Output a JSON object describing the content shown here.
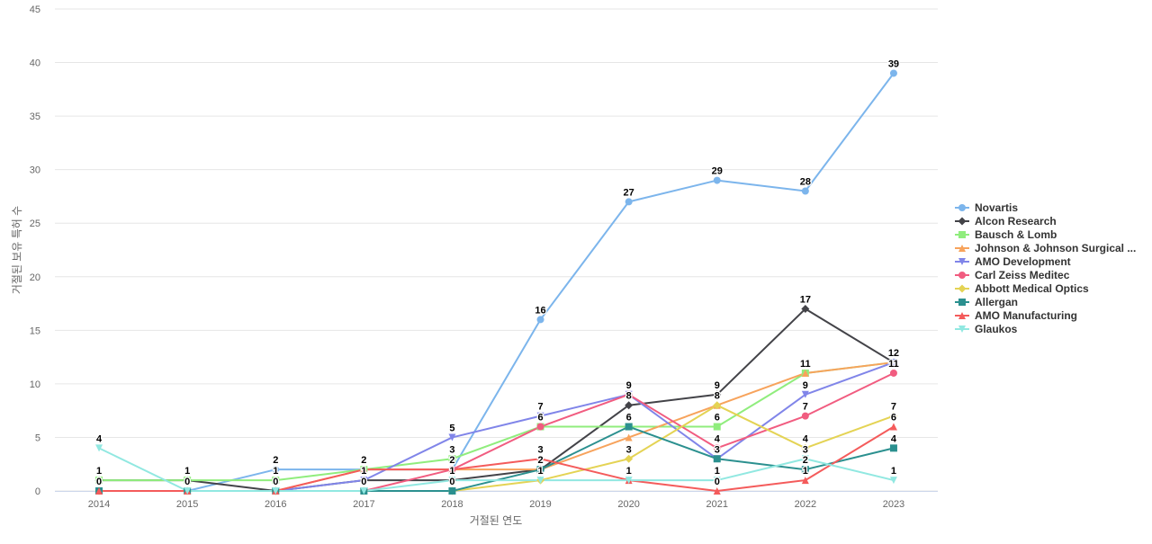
{
  "chart_data": {
    "type": "line",
    "title": "",
    "xlabel": "거절된 연도",
    "ylabel": "거절된 보유 특허 수",
    "ylim": [
      0,
      45
    ],
    "yticks": [
      0,
      5,
      10,
      15,
      20,
      25,
      30,
      35,
      40,
      45
    ],
    "categories": [
      "2014",
      "2015",
      "2016",
      "2017",
      "2018",
      "2019",
      "2020",
      "2021",
      "2022",
      "2023"
    ],
    "legend_position": "right",
    "series": [
      {
        "name": "Novartis",
        "color": "#7cb5ec",
        "marker": "circle",
        "values": [
          0,
          0,
          2,
          2,
          2,
          16,
          27,
          29,
          28,
          39
        ]
      },
      {
        "name": "Alcon Research",
        "color": "#434348",
        "marker": "diamond",
        "values": [
          1,
          1,
          0,
          1,
          1,
          2,
          8,
          9,
          17,
          12
        ]
      },
      {
        "name": "Bausch & Lomb",
        "color": "#90ed7d",
        "marker": "square",
        "values": [
          1,
          1,
          1,
          2,
          3,
          6,
          6,
          6,
          11,
          12
        ]
      },
      {
        "name": "Johnson & Johnson Surgical ...",
        "color": "#f7a35c",
        "marker": "triangle",
        "values": [
          0,
          0,
          0,
          2,
          2,
          2,
          5,
          8,
          11,
          12
        ]
      },
      {
        "name": "AMO Development",
        "color": "#8085e9",
        "marker": "triangle-down",
        "values": [
          0,
          0,
          0,
          1,
          5,
          7,
          9,
          3,
          9,
          12
        ]
      },
      {
        "name": "Carl Zeiss Meditec",
        "color": "#f15c80",
        "marker": "circle",
        "values": [
          0,
          0,
          0,
          0,
          2,
          6,
          9,
          4,
          7,
          11
        ]
      },
      {
        "name": "Abbott Medical Optics",
        "color": "#e4d354",
        "marker": "diamond",
        "values": [
          0,
          0,
          0,
          0,
          0,
          1,
          3,
          8,
          4,
          7
        ]
      },
      {
        "name": "Allergan",
        "color": "#2b908f",
        "marker": "square",
        "values": [
          0,
          0,
          0,
          0,
          0,
          2,
          6,
          3,
          2,
          4
        ]
      },
      {
        "name": "AMO Manufacturing",
        "color": "#f45b5b",
        "marker": "triangle",
        "values": [
          0,
          0,
          0,
          2,
          2,
          3,
          1,
          0,
          1,
          6
        ]
      },
      {
        "name": "Glaukos",
        "color": "#91e8e1",
        "marker": "triangle-down",
        "values": [
          4,
          0,
          0,
          0,
          1,
          1,
          1,
          1,
          3,
          1
        ]
      }
    ],
    "data_labels": [
      {
        "x": "2014",
        "series": "Glaukos",
        "text": "4"
      },
      {
        "x": "2014",
        "series": "Alcon Research",
        "text": "1"
      },
      {
        "x": "2014",
        "series": "Novartis",
        "text": "0"
      },
      {
        "x": "2015",
        "series": "Alcon Research",
        "text": "1"
      },
      {
        "x": "2015",
        "series": "Novartis",
        "text": "0"
      },
      {
        "x": "2016",
        "series": "Novartis",
        "text": "2"
      },
      {
        "x": "2016",
        "series": "Bausch & Lomb",
        "text": "1"
      },
      {
        "x": "2016",
        "series": "Alcon Research",
        "text": "0"
      },
      {
        "x": "2017",
        "series": "Novartis",
        "text": "2"
      },
      {
        "x": "2017",
        "series": "Alcon Research",
        "text": "1"
      },
      {
        "x": "2017",
        "series": "Carl Zeiss Meditec",
        "text": "0"
      },
      {
        "x": "2018",
        "series": "AMO Development",
        "text": "5"
      },
      {
        "x": "2018",
        "series": "Bausch & Lomb",
        "text": "3"
      },
      {
        "x": "2018",
        "series": "Novartis",
        "text": "2"
      },
      {
        "x": "2018",
        "series": "Alcon Research",
        "text": "1"
      },
      {
        "x": "2018",
        "series": "Allergan",
        "text": "0"
      },
      {
        "x": "2019",
        "series": "Novartis",
        "text": "16"
      },
      {
        "x": "2019",
        "series": "AMO Development",
        "text": "7"
      },
      {
        "x": "2019",
        "series": "Carl Zeiss Meditec",
        "text": "6"
      },
      {
        "x": "2019",
        "series": "AMO Manufacturing",
        "text": "3"
      },
      {
        "x": "2019",
        "series": "Allergan",
        "text": "2"
      },
      {
        "x": "2019",
        "series": "Abbott Medical Optics",
        "text": "1"
      },
      {
        "x": "2020",
        "series": "Novartis",
        "text": "27"
      },
      {
        "x": "2020",
        "series": "AMO Development",
        "text": "9"
      },
      {
        "x": "2020",
        "series": "Alcon Research",
        "text": "8"
      },
      {
        "x": "2020",
        "series": "Allergan",
        "text": "6"
      },
      {
        "x": "2020",
        "series": "Abbott Medical Optics",
        "text": "3"
      },
      {
        "x": "2020",
        "series": "AMO Manufacturing",
        "text": "1"
      },
      {
        "x": "2021",
        "series": "Novartis",
        "text": "29"
      },
      {
        "x": "2021",
        "series": "Alcon Research",
        "text": "9"
      },
      {
        "x": "2021",
        "series": "Johnson & Johnson Surgical ...",
        "text": "8"
      },
      {
        "x": "2021",
        "series": "Bausch & Lomb",
        "text": "6"
      },
      {
        "x": "2021",
        "series": "Carl Zeiss Meditec",
        "text": "4"
      },
      {
        "x": "2021",
        "series": "Allergan",
        "text": "3"
      },
      {
        "x": "2021",
        "series": "Glaukos",
        "text": "1"
      },
      {
        "x": "2021",
        "series": "AMO Manufacturing",
        "text": "0"
      },
      {
        "x": "2022",
        "series": "Novartis",
        "text": "28"
      },
      {
        "x": "2022",
        "series": "Alcon Research",
        "text": "17"
      },
      {
        "x": "2022",
        "series": "Johnson & Johnson Surgical ...",
        "text": "11"
      },
      {
        "x": "2022",
        "series": "AMO Development",
        "text": "9"
      },
      {
        "x": "2022",
        "series": "Carl Zeiss Meditec",
        "text": "7"
      },
      {
        "x": "2022",
        "series": "Abbott Medical Optics",
        "text": "4"
      },
      {
        "x": "2022",
        "series": "Glaukos",
        "text": "3"
      },
      {
        "x": "2022",
        "series": "Allergan",
        "text": "2"
      },
      {
        "x": "2022",
        "series": "AMO Manufacturing",
        "text": "1"
      },
      {
        "x": "2023",
        "series": "Novartis",
        "text": "39"
      },
      {
        "x": "2023",
        "series": "Alcon Research",
        "text": "12"
      },
      {
        "x": "2023",
        "series": "Carl Zeiss Meditec",
        "text": "11"
      },
      {
        "x": "2023",
        "series": "Abbott Medical Optics",
        "text": "7"
      },
      {
        "x": "2023",
        "series": "AMO Manufacturing",
        "text": "6"
      },
      {
        "x": "2023",
        "series": "Allergan",
        "text": "4"
      },
      {
        "x": "2023",
        "series": "Glaukos",
        "text": "1"
      }
    ]
  }
}
